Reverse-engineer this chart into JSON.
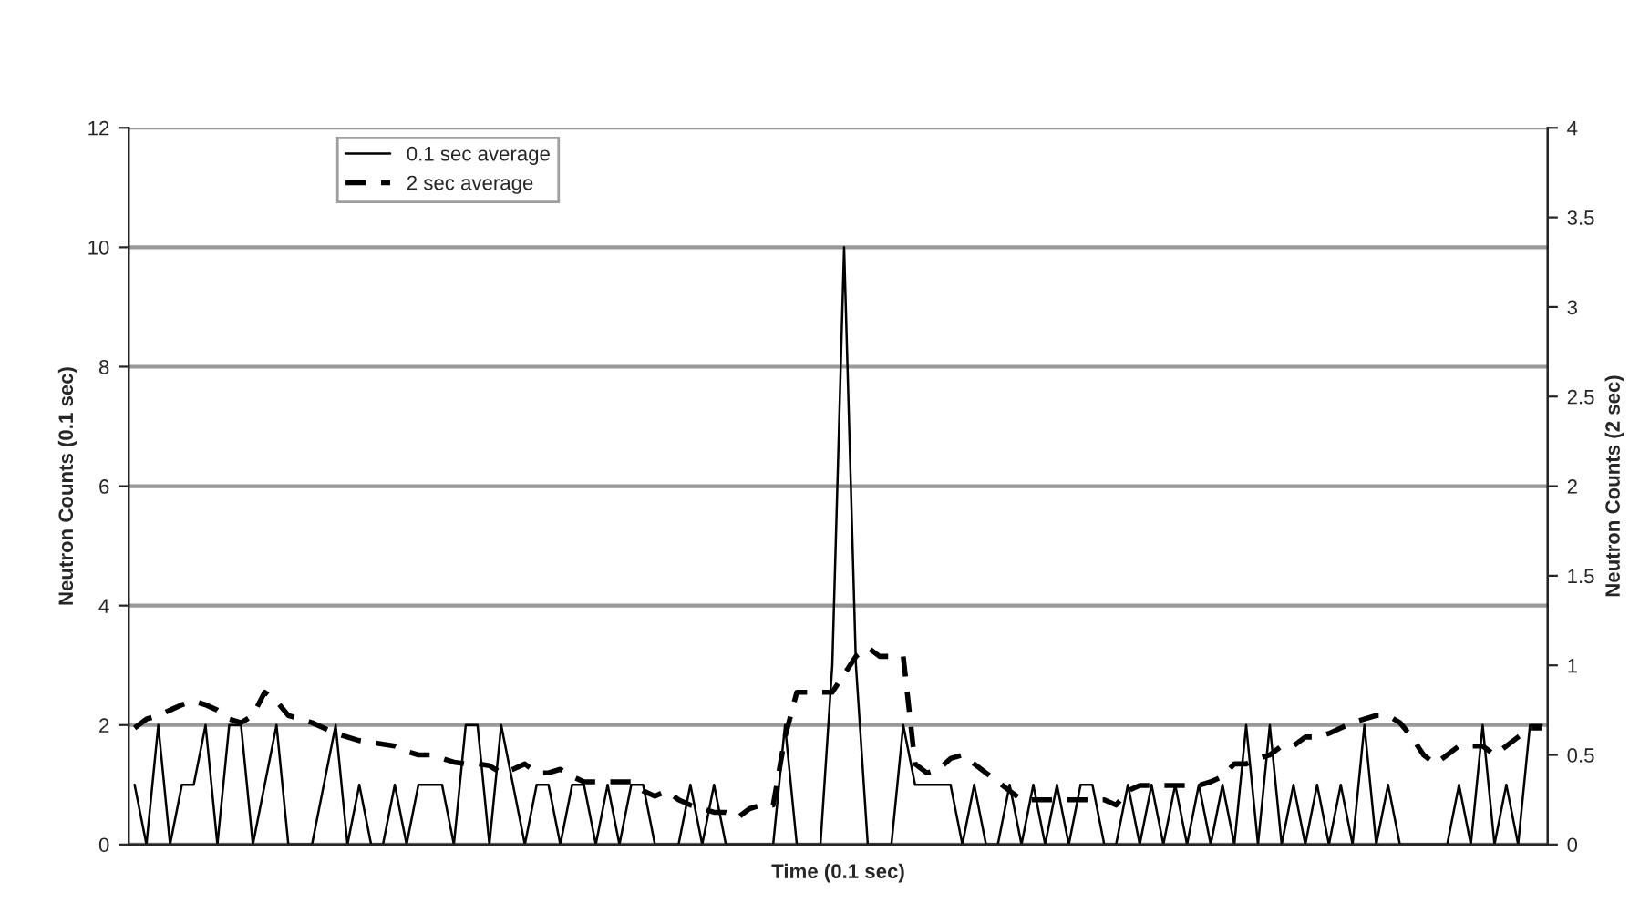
{
  "chart_data": {
    "type": "line",
    "xlabel": "Time (0.1 sec)",
    "ylabel": "Neutron Counts (0.1 sec)",
    "y2label": "Neutron Counts (2 sec)",
    "categories": [
      null,
      null,
      null,
      null,
      null,
      null,
      null,
      null,
      null,
      null,
      null,
      null,
      null,
      null,
      null,
      null,
      null,
      null,
      null,
      null,
      null,
      null,
      null,
      null,
      null,
      null,
      null,
      null,
      null,
      null,
      null,
      null,
      null,
      null,
      null,
      null,
      null,
      null,
      null,
      null,
      null,
      null,
      null,
      null,
      null,
      null,
      null,
      null,
      null,
      null,
      null,
      null,
      null,
      null,
      null,
      null,
      null,
      null,
      null,
      null,
      null,
      null,
      null,
      null,
      null,
      null,
      null,
      null,
      null,
      null,
      null,
      null,
      null,
      null,
      null,
      null,
      null,
      null,
      null,
      null,
      null,
      null,
      null,
      null,
      null,
      null,
      null,
      null,
      null,
      null,
      null,
      null,
      null,
      null,
      null,
      null,
      null,
      null,
      null,
      null,
      null,
      null,
      null,
      null,
      null,
      null,
      null,
      null,
      null,
      null,
      null,
      null,
      null,
      null,
      null,
      null,
      null,
      null,
      null,
      null
    ],
    "series": [
      {
        "name": "0.1 sec average",
        "color": "#000000",
        "line_style": "solid",
        "values": [
          1,
          0,
          2,
          0,
          1,
          1,
          2,
          0,
          2,
          2,
          0,
          1,
          2,
          0,
          0,
          0,
          1,
          2,
          0,
          1,
          0,
          0,
          1,
          0,
          1,
          1,
          1,
          0,
          2,
          2,
          0,
          2,
          1,
          0,
          1,
          1,
          0,
          1,
          1,
          0,
          1,
          0,
          1,
          1,
          0,
          0,
          0,
          1,
          0,
          1,
          0,
          0,
          0,
          0,
          0,
          2,
          0,
          0,
          0,
          3,
          10,
          3,
          0,
          0,
          0,
          2,
          1,
          1,
          1,
          1,
          0,
          1,
          0,
          0,
          1,
          0,
          1,
          0,
          1,
          0,
          1,
          1,
          0,
          0,
          1,
          0,
          1,
          0,
          1,
          0,
          1,
          0,
          1,
          0,
          2,
          0,
          2,
          0,
          1,
          0,
          1,
          0,
          1,
          0,
          2,
          0,
          1,
          0,
          0,
          0,
          0,
          0,
          1,
          0,
          2,
          0,
          1,
          0,
          2,
          2
        ]
      },
      {
        "name": "2 sec average",
        "color": "#000000",
        "line_style": "dashed",
        "axis": "y2",
        "values": [
          0.65,
          0.7,
          0.72,
          0.75,
          0.78,
          0.8,
          0.78,
          0.75,
          0.7,
          0.68,
          0.72,
          0.85,
          0.8,
          0.72,
          0.7,
          0.68,
          0.65,
          0.62,
          0.6,
          0.58,
          0.57,
          0.56,
          0.55,
          0.52,
          0.5,
          0.5,
          0.48,
          0.46,
          0.45,
          0.45,
          0.44,
          0.4,
          0.42,
          0.45,
          0.4,
          0.4,
          0.42,
          0.38,
          0.35,
          0.35,
          0.35,
          0.35,
          0.35,
          0.3,
          0.27,
          0.3,
          0.25,
          0.22,
          0.2,
          0.18,
          0.18,
          0.15,
          0.2,
          0.22,
          0.22,
          0.6,
          0.85,
          0.85,
          0.85,
          0.85,
          0.95,
          1.05,
          1.1,
          1.05,
          1.05,
          1.05,
          0.45,
          0.4,
          0.42,
          0.48,
          0.5,
          0.45,
          0.4,
          0.35,
          0.3,
          0.25,
          0.25,
          0.25,
          0.25,
          0.25,
          0.25,
          0.25,
          0.25,
          0.22,
          0.3,
          0.33,
          0.33,
          0.33,
          0.33,
          0.33,
          0.33,
          0.35,
          0.38,
          0.45,
          0.45,
          0.48,
          0.5,
          0.55,
          0.55,
          0.6,
          0.6,
          0.62,
          0.65,
          0.68,
          0.7,
          0.72,
          0.72,
          0.68,
          0.6,
          0.5,
          0.45,
          0.5,
          0.55,
          0.55,
          0.55,
          0.5,
          0.55,
          0.6,
          0.65,
          0.65
        ]
      }
    ],
    "ylim": [
      0,
      12
    ],
    "yticks": [
      0,
      2,
      4,
      6,
      8,
      10,
      12
    ],
    "y2lim": [
      0,
      4
    ],
    "y2ticks": [
      0,
      0.5,
      1,
      1.5,
      2,
      2.5,
      3,
      3.5,
      4
    ],
    "grid": "y",
    "legend": "top left"
  }
}
